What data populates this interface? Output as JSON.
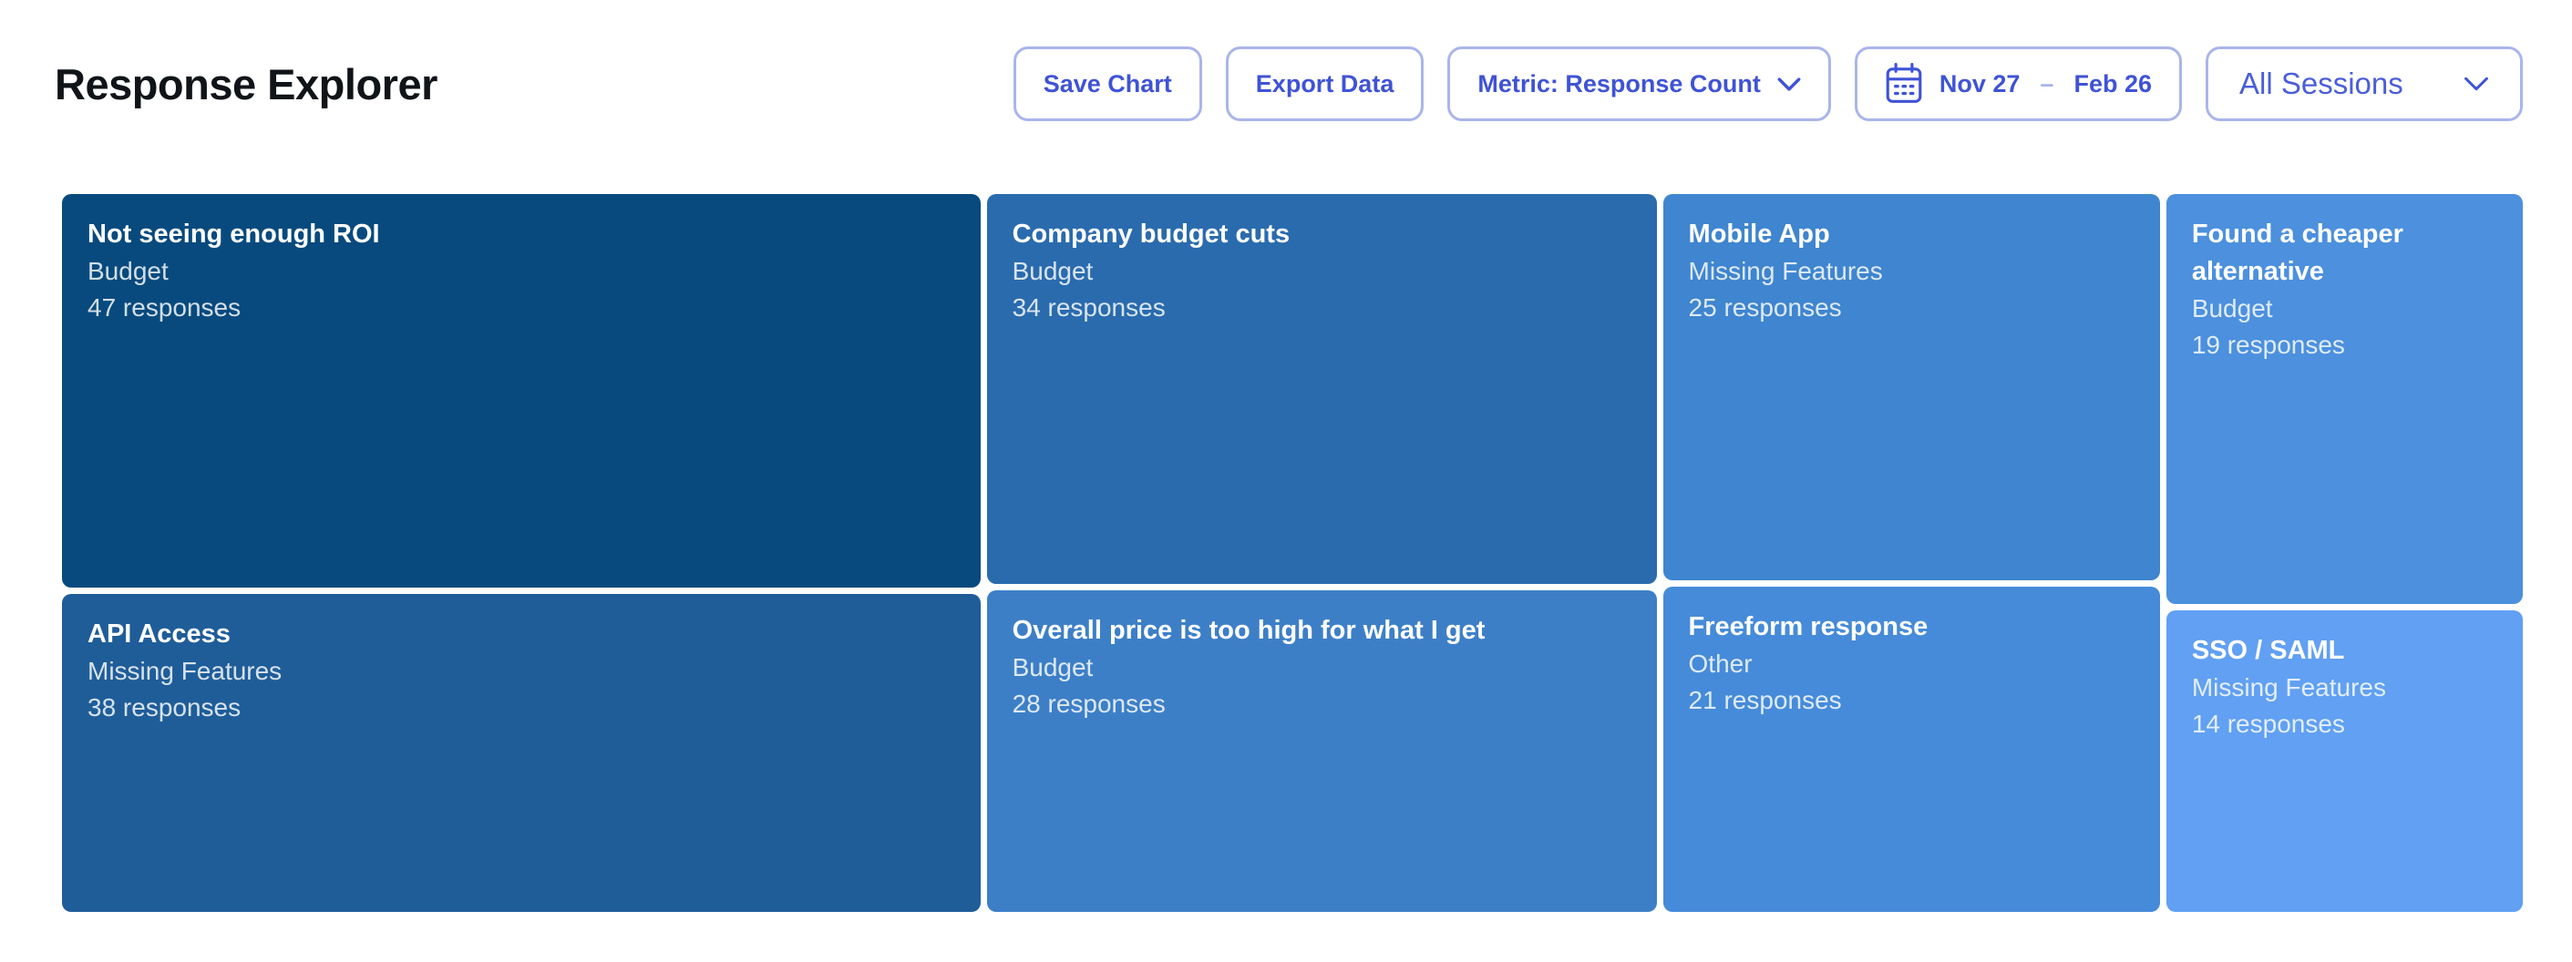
{
  "header": {
    "title": "Response Explorer",
    "buttons": {
      "save": "Save Chart",
      "export": "Export Data",
      "metric": "Metric: Response Count",
      "sessions": "All Sessions"
    },
    "date_range": {
      "start": "Nov 27",
      "separator": "–",
      "end": "Feb 26"
    }
  },
  "colors": {
    "accent": "#3f53d6",
    "btn_border": "#aab5e9",
    "sessions_text": "#4a5ed9",
    "dash_color": "#a7b2ea",
    "title_color": "#101419",
    "page_bg": "#ffffff"
  },
  "chart_data": {
    "type": "treemap",
    "title": "Response Explorer",
    "metric": "Response Count",
    "unit_label": "responses",
    "layout": "4 columns, column width proportional to column total, vertical split proportional to values",
    "tiles": [
      {
        "label": "Not seeing enough ROI",
        "category": "Budget",
        "responses": 47,
        "color": "#084a7e",
        "col": 0
      },
      {
        "label": "API Access",
        "category": "Missing Features",
        "responses": 38,
        "color": "#1f5d99",
        "col": 0
      },
      {
        "label": "Company budget cuts",
        "category": "Budget",
        "responses": 34,
        "color": "#2a6bae",
        "col": 1
      },
      {
        "label": "Overall price is too high for what I get",
        "category": "Budget",
        "responses": 28,
        "color": "#3d7fc7",
        "col": 1
      },
      {
        "label": "Mobile App",
        "category": "Missing Features",
        "responses": 25,
        "color": "#3f85cf",
        "col": 2
      },
      {
        "label": "Freeform response",
        "category": "Other",
        "responses": 21,
        "color": "#468bd9",
        "col": 2
      },
      {
        "label": "Found a cheaper alternative",
        "category": "Budget",
        "responses": 19,
        "color": "#4c90de",
        "col": 3
      },
      {
        "label": "SSO / SAML",
        "category": "Missing Features",
        "responses": 14,
        "color": "#61a0f2",
        "col": 3
      }
    ]
  }
}
